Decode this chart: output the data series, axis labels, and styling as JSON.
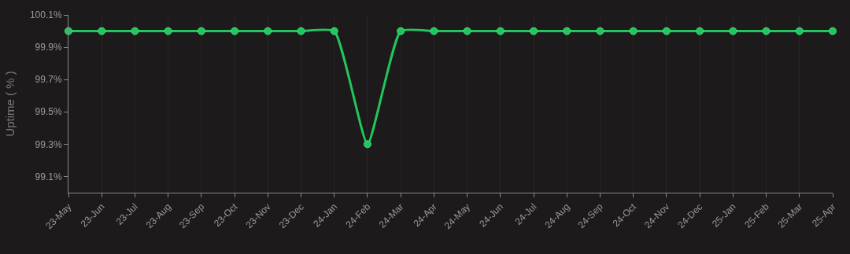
{
  "chart_data": {
    "type": "line",
    "ylabel": "Uptime ( % )",
    "categories": [
      "23-May",
      "23-Jun",
      "23-Jul",
      "23-Aug",
      "23-Sep",
      "23-Oct",
      "23-Nov",
      "23-Dec",
      "24-Jan",
      "24-Feb",
      "24-Mar",
      "24-Apr",
      "24-May",
      "24-Jun",
      "24-Jul",
      "24-Aug",
      "24-Sep",
      "24-Oct",
      "24-Nov",
      "24-Dec",
      "25-Jan",
      "25-Feb",
      "25-Mar",
      "25-Apr"
    ],
    "series": [
      {
        "color": "#22c55e",
        "values": [
          100.0,
          100.0,
          100.0,
          100.0,
          100.0,
          100.0,
          100.0,
          100.0,
          100.0,
          99.3,
          100.0,
          100.0,
          100.0,
          100.0,
          100.0,
          100.0,
          100.0,
          100.0,
          100.0,
          100.0,
          100.0,
          100.0,
          100.0,
          100.0
        ]
      }
    ],
    "ylim": [
      99.0,
      100.1
    ],
    "yticks": [
      {
        "value": 99.1,
        "label": "99.1%"
      },
      {
        "value": 99.3,
        "label": "99.3%"
      },
      {
        "value": 99.5,
        "label": "99.5%"
      },
      {
        "value": 99.7,
        "label": "99.7%"
      },
      {
        "value": 99.9,
        "label": "99.9%"
      },
      {
        "value": 100.1,
        "label": "100.1%"
      }
    ],
    "grid": "x",
    "marker": "circle",
    "line_style": "solid"
  }
}
